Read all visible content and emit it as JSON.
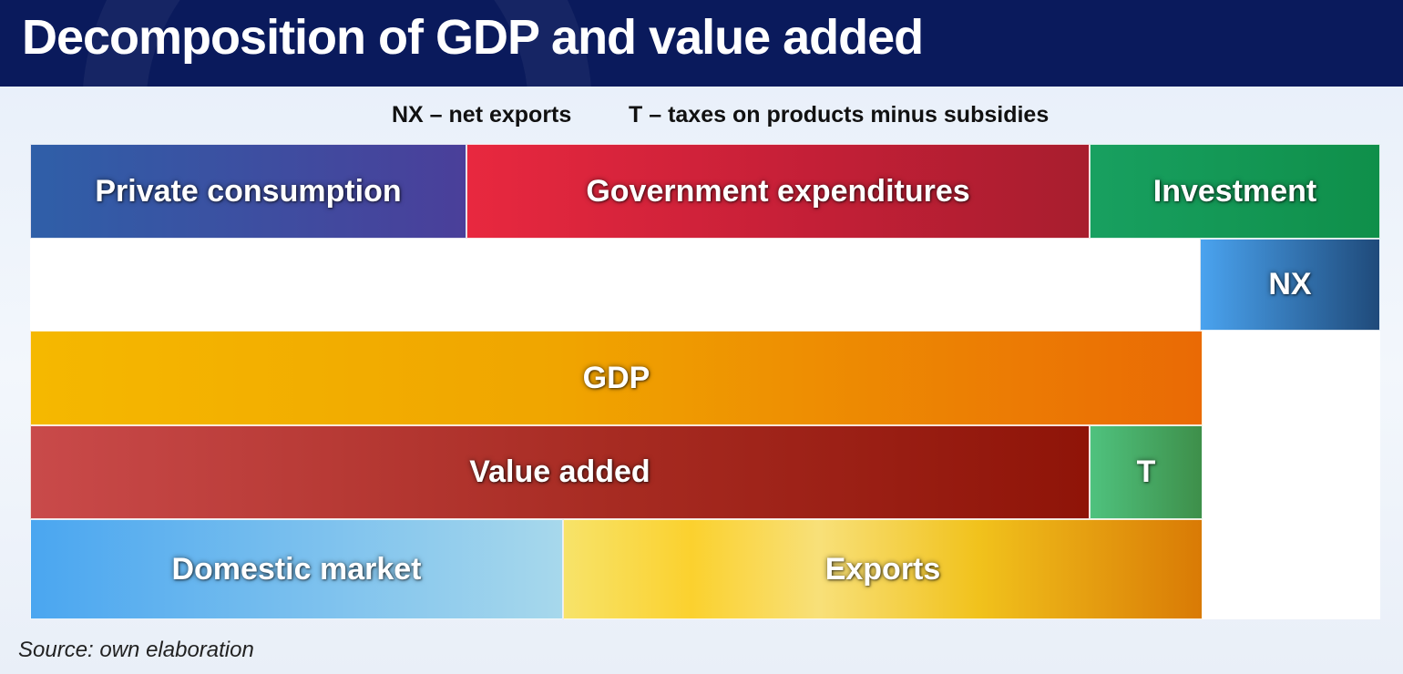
{
  "title": "Decomposition of GDP and value added",
  "legend": {
    "nx": "NX – net exports",
    "t": "T – taxes on products minus subsidies"
  },
  "boxes": {
    "private_consumption": "Private consumption",
    "government_expenditures": "Government expenditures",
    "investment": "Investment",
    "nx": "NX",
    "gdp": "GDP",
    "value_added": "Value added",
    "t": "T",
    "domestic_market": "Domestic market",
    "exports": "Exports"
  },
  "source": "Source: own elaboration",
  "colors": {
    "header_bg": "#0a1a5c",
    "private_consumption": [
      "#2f5fa8",
      "#4a3f9a"
    ],
    "government_expenditures": [
      "#e8283f",
      "#a81e2e"
    ],
    "investment": [
      "#18a060",
      "#0f8f4a"
    ],
    "nx": [
      "#4aa3ef",
      "#1f4a7a"
    ],
    "gdp": [
      "#f5b800",
      "#ea6a05"
    ],
    "value_added": [
      "#c94a4a",
      "#8f1408"
    ],
    "t": [
      "#4fc27e",
      "#3e8f4a"
    ],
    "domestic_market": [
      "#4aa6f0",
      "#a7d8ec"
    ],
    "exports": [
      "#f7e36a",
      "#d97a05"
    ]
  }
}
